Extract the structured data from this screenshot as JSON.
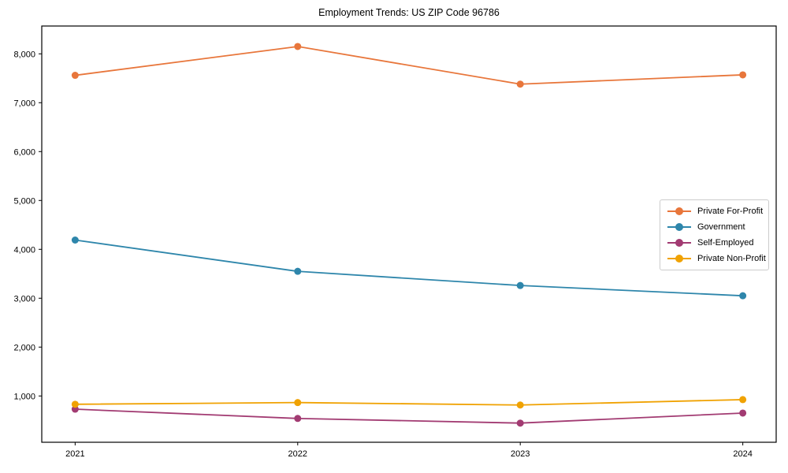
{
  "chart_data": {
    "type": "line",
    "title": "Employment Trends: US ZIP Code 96786",
    "xlabel": "",
    "ylabel": "",
    "x": [
      2021,
      2022,
      2023,
      2024
    ],
    "xtick_labels": [
      "2021",
      "2022",
      "2023",
      "2024"
    ],
    "ytick_values": [
      1000,
      2000,
      3000,
      4000,
      5000,
      6000,
      7000,
      8000
    ],
    "ytick_labels": [
      "1,000",
      "2,000",
      "3,000",
      "4,000",
      "5,000",
      "6,000",
      "7,000",
      "8,000"
    ],
    "xlim": [
      2020.85,
      2024.15
    ],
    "ylim": [
      53,
      8569
    ],
    "grid": false,
    "legend_position": "center right",
    "background_color": "#ffffff",
    "spine_color": "#000000",
    "series": [
      {
        "name": "Private For-Profit",
        "color": "#E8763B",
        "values": [
          7560,
          8150,
          7380,
          7570
        ]
      },
      {
        "name": "Government",
        "color": "#2E86AB",
        "values": [
          4190,
          3550,
          3260,
          3050
        ]
      },
      {
        "name": "Self-Employed",
        "color": "#A23B72",
        "values": [
          730,
          540,
          445,
          650
        ]
      },
      {
        "name": "Private Non-Profit",
        "color": "#F0A202",
        "values": [
          830,
          865,
          815,
          925
        ]
      }
    ]
  }
}
